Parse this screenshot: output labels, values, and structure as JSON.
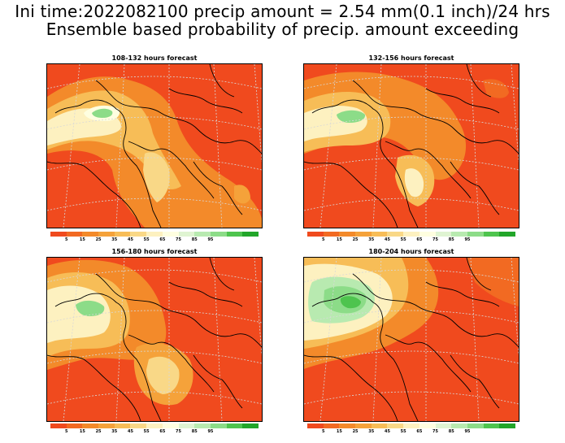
{
  "title": {
    "line1": "Ini time:2022082100 precip amount = 2.54 mm(0.1 inch)/24 hrs",
    "line2": "Ensemble based probability of precip. amount exceeding"
  },
  "panels": [
    {
      "label": "108-132 hours forecast"
    },
    {
      "label": "132-156 hours forecast"
    },
    {
      "label": "156-180 hours forecast"
    },
    {
      "label": "180-204 hours forecast"
    }
  ],
  "colorbar": {
    "ticks": [
      "5",
      "15",
      "25",
      "35",
      "45",
      "55",
      "65",
      "75",
      "85",
      "95"
    ],
    "colors": [
      "#f04a1e",
      "#f26a22",
      "#f38a2a",
      "#f5a23a",
      "#f7bd57",
      "#f9d887",
      "#fdf1c0",
      "#fefee0",
      "#dff4d2",
      "#b8eab0",
      "#8cdc88",
      "#4ec44e",
      "#22a62a"
    ]
  }
}
